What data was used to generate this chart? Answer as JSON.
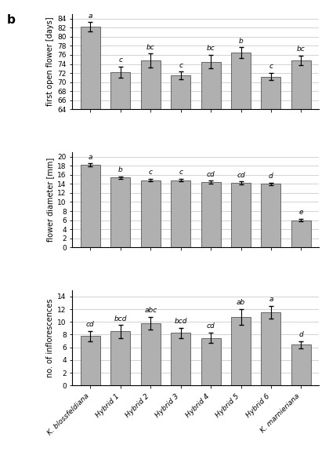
{
  "categories": [
    "K. blossfeldiana",
    "Hybrid 1",
    "Hybrid 2",
    "Hybrid 3",
    "Hybrid 4",
    "Hybrid 5",
    "Hybrid 6",
    "K. marnieriana"
  ],
  "chart1": {
    "values": [
      82.2,
      72.2,
      74.8,
      71.5,
      74.5,
      76.5,
      71.2,
      74.8
    ],
    "errors": [
      1.0,
      1.2,
      1.5,
      0.8,
      1.5,
      1.2,
      0.8,
      1.0
    ],
    "labels": [
      "a",
      "c",
      "bc",
      "c",
      "bc",
      "b",
      "c",
      "bc"
    ],
    "ylabel": "first open flower [days]",
    "ylim": [
      64,
      85
    ],
    "yticks": [
      64,
      66,
      68,
      70,
      72,
      74,
      76,
      78,
      80,
      82,
      84
    ]
  },
  "chart2": {
    "values": [
      18.2,
      15.4,
      14.8,
      14.8,
      14.4,
      14.2,
      14.0,
      6.0
    ],
    "errors": [
      0.3,
      0.3,
      0.3,
      0.3,
      0.3,
      0.3,
      0.3,
      0.3
    ],
    "labels": [
      "a",
      "b",
      "c",
      "c",
      "cd",
      "cd",
      "d",
      "e"
    ],
    "ylabel": "flower diameter [mm]",
    "ylim": [
      0,
      21
    ],
    "yticks": [
      0,
      2,
      4,
      6,
      8,
      10,
      12,
      14,
      16,
      18,
      20
    ]
  },
  "chart3": {
    "values": [
      7.8,
      8.5,
      9.8,
      8.3,
      7.5,
      10.8,
      11.5,
      6.4
    ],
    "errors": [
      0.8,
      1.0,
      1.0,
      0.8,
      0.8,
      1.2,
      1.0,
      0.6
    ],
    "labels": [
      "cd",
      "bcd",
      "abc",
      "bcd",
      "cd",
      "ab",
      "a",
      "d"
    ],
    "ylabel": "no. of inflorescences",
    "ylim": [
      0,
      15
    ],
    "yticks": [
      0,
      2,
      4,
      6,
      8,
      10,
      12,
      14
    ]
  },
  "bar_color": "#b0b0b0",
  "bar_edge_color": "#555555",
  "background_color": "#ffffff",
  "label_b": "b",
  "fig_width": 4.2,
  "fig_height": 5.99
}
